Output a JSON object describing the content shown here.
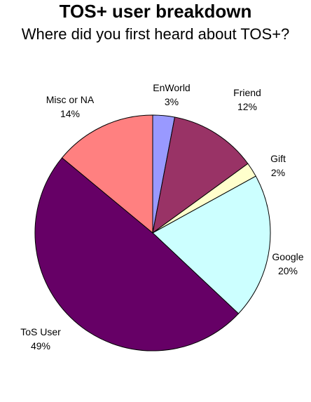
{
  "chart_data": {
    "type": "pie",
    "title": "TOS+ user breakdown",
    "subtitle": "Where did you first heard about TOS+?",
    "legend": "none",
    "slices": [
      {
        "label": "EnWorld",
        "percent_label": "3%",
        "value": 3,
        "color": "#9999ff"
      },
      {
        "label": "Friend",
        "percent_label": "12%",
        "value": 12,
        "color": "#993366"
      },
      {
        "label": "Gift",
        "percent_label": "2%",
        "value": 2,
        "color": "#ffffcc"
      },
      {
        "label": "Google",
        "percent_label": "20%",
        "value": 20,
        "color": "#ccffff"
      },
      {
        "label": "ToS User",
        "percent_label": "49%",
        "value": 49,
        "color": "#660066"
      },
      {
        "label": "Misc or NA",
        "percent_label": "14%",
        "value": 14,
        "color": "#ff8080"
      }
    ]
  }
}
